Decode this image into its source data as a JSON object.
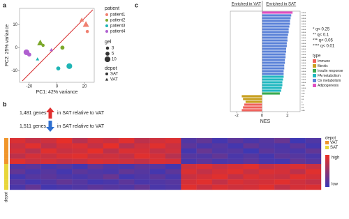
{
  "chart_data": [
    {
      "type": "scatter",
      "panel": "a",
      "xlabel": "PC1: 42% variance",
      "ylabel": "PC2: 25% variance",
      "xlim": [
        -27,
        27
      ],
      "ylim": [
        -15,
        17
      ],
      "xticks": [
        -20,
        0,
        20
      ],
      "yticks": [
        -10,
        0,
        10
      ],
      "line_color": "#d62728",
      "legend": {
        "patient_title": "patient",
        "gel_title": "gel",
        "gel_sizes": [
          3,
          5,
          10
        ],
        "depot_title": "depot",
        "depots": [
          "SAT",
          "VAT"
        ],
        "depot_shapes": [
          "circle",
          "triangle"
        ]
      },
      "series": [
        {
          "name": "patient1",
          "color": "#f08070",
          "x": [
            18,
            21,
            22
          ],
          "y": [
            12,
            10,
            7
          ],
          "gel": [
            5,
            10,
            3
          ],
          "depot": [
            "VAT",
            "VAT",
            "SAT"
          ]
        },
        {
          "name": "patient2",
          "color": "#7ca82b",
          "x": [
            -12,
            -10,
            4
          ],
          "y": [
            2,
            1,
            0
          ],
          "gel": [
            10,
            3,
            5
          ],
          "depot": [
            "VAT",
            "SAT",
            "SAT"
          ]
        },
        {
          "name": "patient3",
          "color": "#1fb5b5",
          "x": [
            -14,
            1,
            9
          ],
          "y": [
            -5,
            -9,
            -8
          ],
          "gel": [
            3,
            5,
            10
          ],
          "depot": [
            "VAT",
            "SAT",
            "SAT"
          ]
        },
        {
          "name": "patient4",
          "color": "#b060d0",
          "x": [
            -22,
            -20,
            -4
          ],
          "y": [
            -2,
            -3,
            -1
          ],
          "gel": [
            10,
            5,
            3
          ],
          "depot": [
            "SAT",
            "SAT",
            "VAT"
          ]
        }
      ]
    },
    {
      "type": "heatmap",
      "panel": "b",
      "annotations": [
        {
          "count": "1,481 genes",
          "text": "in SAT relative to VAT",
          "direction": "up",
          "color": "#e03030"
        },
        {
          "count": "1,511 genes",
          "text": "in SAT relative to VAT",
          "direction": "down",
          "color": "#2e6fd0"
        }
      ],
      "clim": [
        -1.5,
        1.5
      ],
      "low_color": "#3838b8",
      "high_color": "#ec2f24",
      "colorbar_high": "high",
      "colorbar_low": "low",
      "depot_title": "depot",
      "depots": [
        "VAT",
        "SAT"
      ],
      "depot_colors": [
        "#f0952a",
        "#e8d63a"
      ],
      "row_depot": [
        "VAT",
        "VAT",
        "VAT",
        "VAT",
        "VAT",
        "SAT",
        "SAT",
        "SAT",
        "SAT",
        "SAT"
      ],
      "values": [
        [
          1.2,
          0.8,
          1.0,
          1.4,
          0.6,
          1.1,
          0.9,
          1.3,
          0.7,
          1.0,
          1.2,
          -1.1,
          -0.8,
          -1.3,
          -0.9,
          -1.2,
          -1.0,
          -0.7,
          -1.4,
          -1.1
        ],
        [
          0.9,
          1.3,
          0.7,
          1.1,
          1.2,
          0.8,
          1.4,
          0.6,
          1.0,
          1.3,
          0.9,
          -0.9,
          -1.2,
          -1.0,
          -1.3,
          -0.8,
          -1.1,
          -1.2,
          -0.9,
          -1.3
        ],
        [
          1.1,
          0.6,
          1.3,
          0.9,
          1.0,
          1.4,
          0.7,
          1.2,
          1.1,
          0.8,
          1.0,
          -1.3,
          -0.7,
          -1.1,
          -1.0,
          -1.4,
          -0.9,
          -1.1,
          -1.2,
          -0.8
        ],
        [
          0.7,
          1.1,
          0.9,
          1.2,
          1.3,
          0.9,
          1.0,
          0.8,
          1.3,
          1.1,
          0.6,
          -1.0,
          -1.1,
          -0.8,
          -1.2,
          -1.0,
          -1.3,
          -0.9,
          -1.0,
          -1.2
        ],
        [
          1.3,
          0.9,
          1.1,
          0.8,
          0.9,
          1.2,
          1.1,
          1.0,
          0.8,
          1.2,
          1.1,
          -1.2,
          -0.9,
          -1.2,
          -1.1,
          -0.9,
          -1.2,
          -1.3,
          -0.8,
          -1.0
        ],
        [
          -1.1,
          -0.9,
          -1.2,
          -1.0,
          -1.3,
          -0.8,
          -1.1,
          -1.2,
          -0.9,
          -1.0,
          -1.3,
          1.0,
          1.2,
          0.9,
          1.1,
          1.3,
          0.8,
          1.0,
          1.2,
          0.9
        ],
        [
          -0.8,
          -1.2,
          -1.0,
          -1.3,
          -0.9,
          -1.1,
          -1.2,
          -0.8,
          -1.0,
          -1.3,
          -0.9,
          1.2,
          0.8,
          1.1,
          1.3,
          0.9,
          1.2,
          1.1,
          0.7,
          1.3
        ],
        [
          -1.3,
          -1.0,
          -0.9,
          -1.1,
          -1.2,
          -1.0,
          -0.7,
          -1.3,
          -1.1,
          -0.9,
          -1.2,
          0.9,
          1.1,
          1.3,
          0.8,
          1.2,
          1.0,
          0.9,
          1.3,
          1.1
        ],
        [
          -1.0,
          -1.3,
          -1.1,
          -0.8,
          -1.0,
          -1.3,
          -1.2,
          -0.9,
          -1.2,
          -1.1,
          -1.0,
          1.1,
          1.3,
          0.8,
          1.2,
          1.0,
          1.1,
          1.3,
          1.0,
          0.8
        ],
        [
          -1.2,
          -0.8,
          -1.3,
          -1.2,
          -1.1,
          -0.9,
          -1.0,
          -1.1,
          -0.8,
          -1.2,
          -1.1,
          1.3,
          0.9,
          1.2,
          1.0,
          1.1,
          1.3,
          0.8,
          1.1,
          1.2
        ]
      ]
    },
    {
      "type": "hbar",
      "panel": "c",
      "xlabel": "NES",
      "header_left": "Enriched in VAT",
      "header_right": "Enriched in SAT",
      "xlim": [
        -2.5,
        3
      ],
      "xticks": [
        -2,
        0,
        2
      ],
      "sig_legend": [
        "* q< 0.25",
        "** q< 0.1",
        "*** q< 0.05",
        "**** q< 0.01"
      ],
      "type_title": "type",
      "types": [
        "Immune",
        "fibrotic",
        "Insulin response",
        "FA metabolism",
        "Ox metabolism",
        "Adipogenesis"
      ],
      "type_colors": [
        "#f0605a",
        "#c8a020",
        "#3aaa50",
        "#20b8c0",
        "#5b82d8",
        "#e050c0"
      ],
      "categories": [
        null,
        null,
        null,
        null,
        null,
        null,
        null,
        null,
        null,
        null,
        null,
        null,
        null,
        null,
        null,
        null,
        null,
        null,
        null,
        null,
        null,
        null,
        null,
        null,
        null,
        null,
        null,
        null,
        null,
        null,
        null,
        null,
        null,
        null,
        null,
        null
      ],
      "values": [
        2.4,
        2.3,
        2.25,
        2.2,
        2.2,
        2.15,
        2.1,
        2.1,
        2.05,
        2.0,
        2.0,
        1.95,
        1.95,
        1.9,
        1.9,
        1.85,
        1.85,
        1.8,
        1.8,
        1.75,
        1.75,
        1.7,
        1.7,
        1.7,
        1.65,
        1.6,
        1.6,
        1.55,
        1.5,
        1.4,
        -1.6,
        -1.5,
        -1.3,
        -1.4,
        -1.5,
        -1.6
      ],
      "bar_types": [
        "Adipogenesis",
        "Ox metabolism",
        "Ox metabolism",
        "Ox metabolism",
        "Ox metabolism",
        "Ox metabolism",
        "Ox metabolism",
        "Ox metabolism",
        "Ox metabolism",
        "Ox metabolism",
        "Ox metabolism",
        "Ox metabolism",
        "Ox metabolism",
        "Ox metabolism",
        "Ox metabolism",
        "Ox metabolism",
        "Ox metabolism",
        "Ox metabolism",
        "Ox metabolism",
        "Ox metabolism",
        "Ox metabolism",
        "Ox metabolism",
        "Ox metabolism",
        "FA metabolism",
        "FA metabolism",
        "FA metabolism",
        "FA metabolism",
        "FA metabolism",
        "FA metabolism",
        "Insulin response",
        "fibrotic",
        "fibrotic",
        "fibrotic",
        "Immune",
        "Immune",
        "Immune"
      ],
      "sig": [
        "****",
        "****",
        "****",
        "****",
        "****",
        "****",
        "****",
        "****",
        "****",
        "****",
        "****",
        "****",
        "****",
        "****",
        "****",
        "****",
        "****",
        "****",
        "****",
        "****",
        "****",
        "****",
        "****",
        "****",
        "****",
        "****",
        "***",
        "****",
        "***",
        "***",
        "**",
        "**",
        "*",
        "**",
        "**",
        "***"
      ]
    }
  ]
}
